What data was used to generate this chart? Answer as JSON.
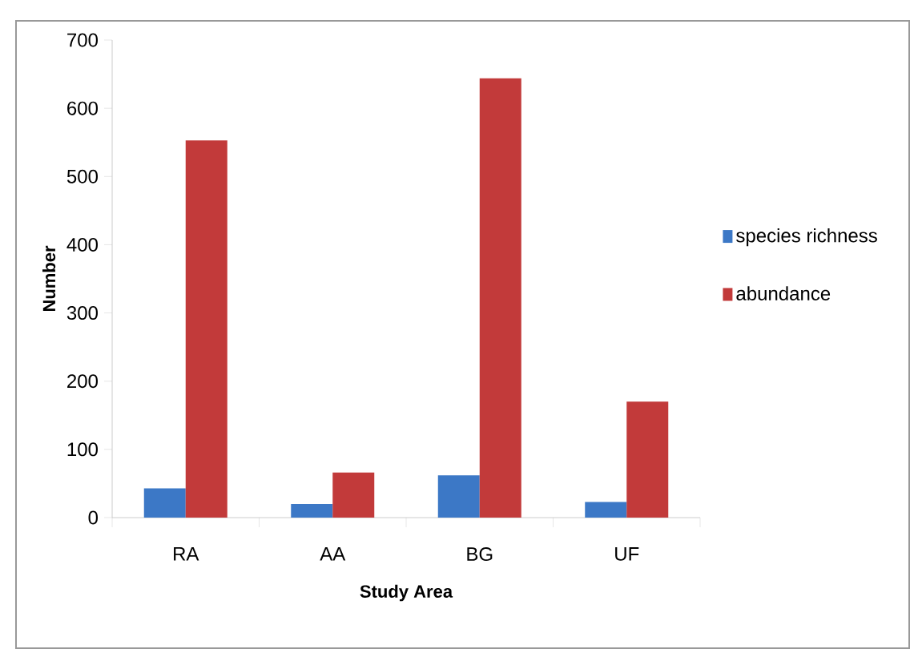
{
  "chart_data": {
    "type": "bar",
    "xlabel": "Study Area",
    "ylabel": "Number",
    "categories": [
      "RA",
      "AA",
      "BG",
      "UF"
    ],
    "series": [
      {
        "name": "species richness",
        "color": "#3c78c6",
        "values": [
          43,
          20,
          62,
          23
        ]
      },
      {
        "name": "abundance",
        "color": "#c23a3a",
        "values": [
          553,
          66,
          644,
          170
        ]
      }
    ],
    "ylim": [
      0,
      700
    ],
    "yticks": [
      0,
      100,
      200,
      300,
      400,
      500,
      600,
      700
    ],
    "grid": false,
    "legend": "right"
  }
}
